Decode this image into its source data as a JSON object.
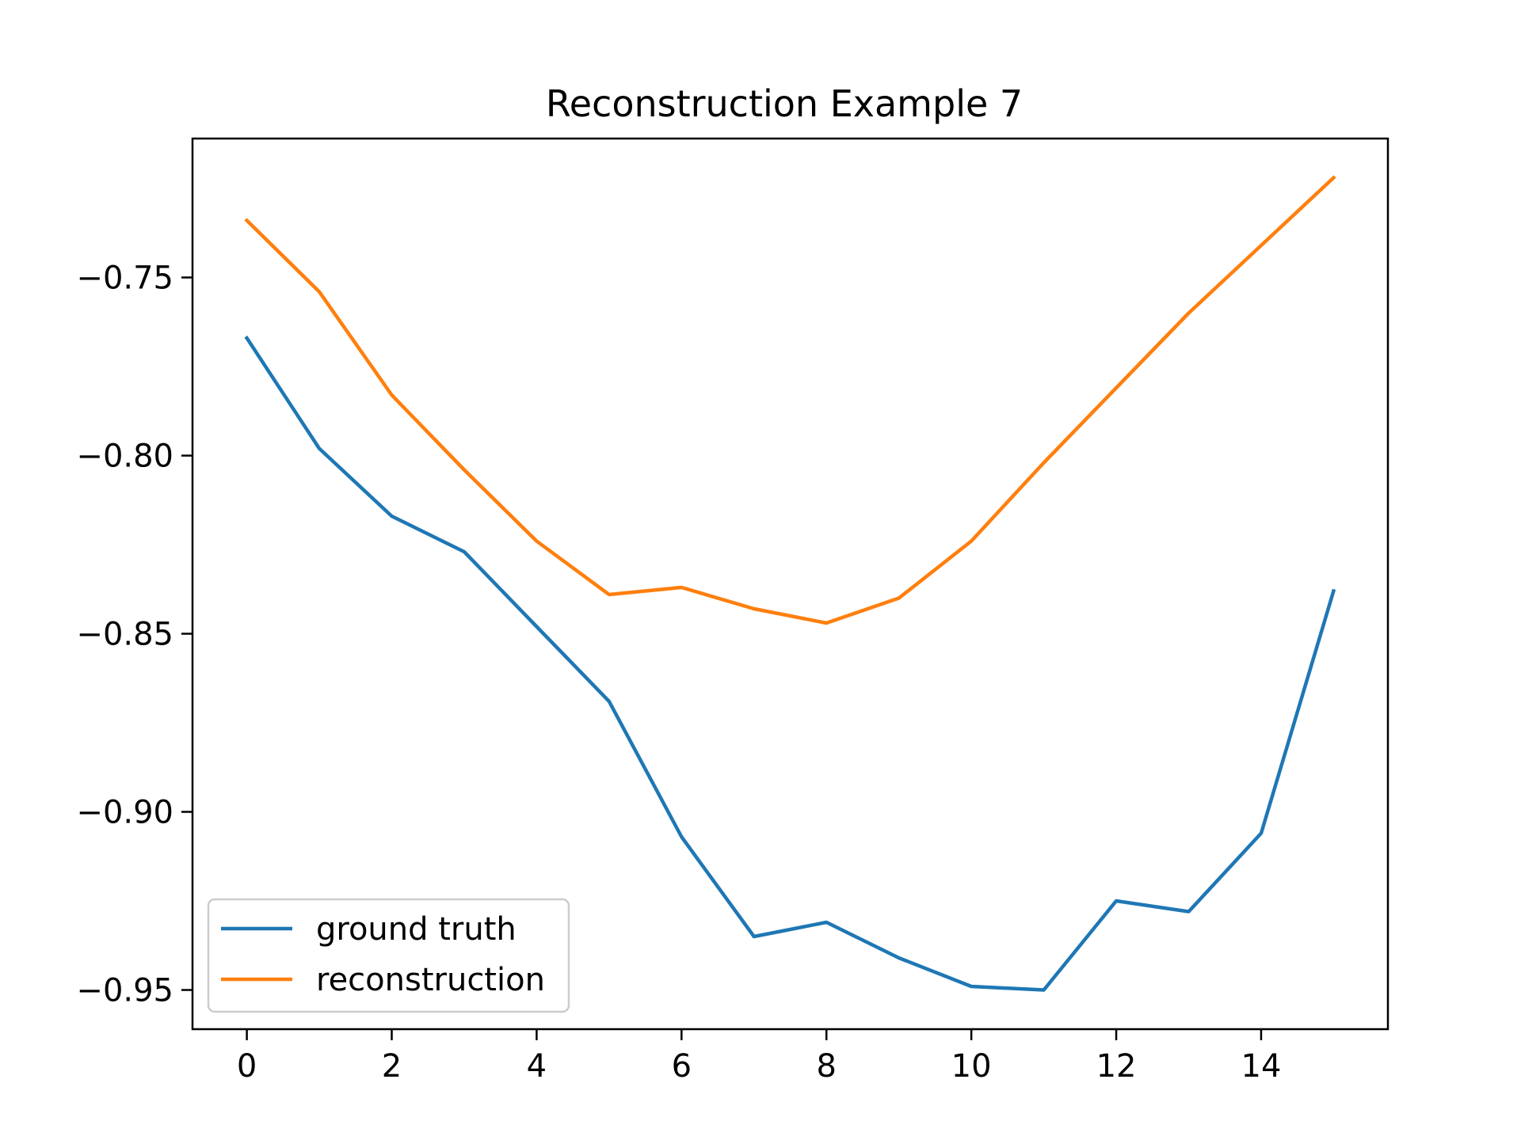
{
  "chart_data": {
    "type": "line",
    "title": "Reconstruction Example 7",
    "xlabel": "",
    "ylabel": "",
    "x": [
      0,
      1,
      2,
      3,
      4,
      5,
      6,
      7,
      8,
      9,
      10,
      11,
      12,
      13,
      14,
      15
    ],
    "series": [
      {
        "name": "ground truth",
        "color": "#1f77b4",
        "values": [
          -0.767,
          -0.798,
          -0.817,
          -0.827,
          -0.848,
          -0.869,
          -0.907,
          -0.935,
          -0.931,
          -0.941,
          -0.949,
          -0.95,
          -0.925,
          -0.928,
          -0.906,
          -0.838
        ]
      },
      {
        "name": "reconstruction",
        "color": "#ff7f0e",
        "values": [
          -0.734,
          -0.754,
          -0.783,
          -0.804,
          -0.824,
          -0.839,
          -0.837,
          -0.843,
          -0.847,
          -0.84,
          -0.824,
          -0.802,
          -0.781,
          -0.76,
          -0.741,
          -0.722
        ]
      }
    ],
    "xlim": [
      -0.75,
      15.75
    ],
    "ylim": [
      -0.961,
      -0.711
    ],
    "xticks": [
      0,
      2,
      4,
      6,
      8,
      10,
      12,
      14
    ],
    "xtick_labels": [
      "0",
      "2",
      "4",
      "6",
      "8",
      "10",
      "12",
      "14"
    ],
    "yticks": [
      -0.75,
      -0.8,
      -0.85,
      -0.9,
      -0.95
    ],
    "ytick_labels": [
      "−0.75",
      "−0.80",
      "−0.85",
      "−0.90",
      "−0.95"
    ],
    "grid": false,
    "legend_position": "lower-left"
  }
}
